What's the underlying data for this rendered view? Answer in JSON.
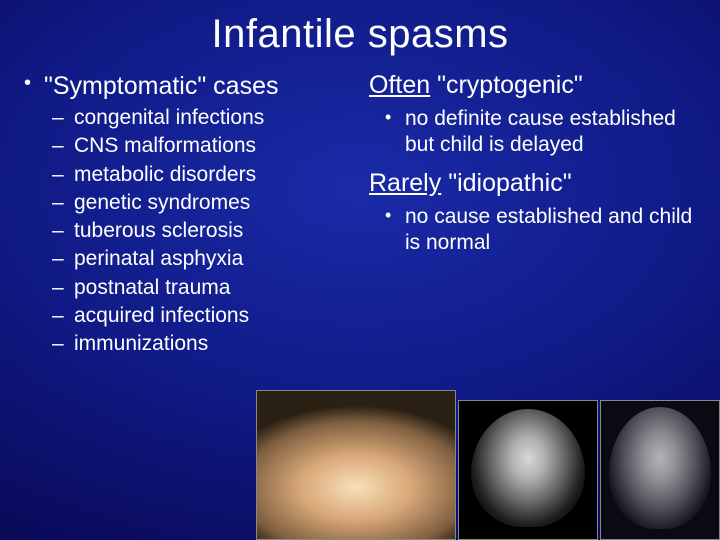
{
  "title": "Infantile spasms",
  "left": {
    "bullet": "\"Symptomatic\" cases",
    "sub": [
      "congenital infections",
      "CNS malformations",
      "metabolic disorders",
      "genetic syndromes",
      "tuberous sclerosis",
      "perinatal asphyxia",
      "postnatal trauma",
      "acquired infections",
      "immunizations"
    ]
  },
  "right": {
    "h1_under": "Often",
    "h1_rest": " \"cryptogenic\"",
    "b1": "no definite cause established but child is delayed",
    "h2_under": "Rarely",
    "h2_rest": " \"idiopathic\"",
    "b2": "no cause established and child is normal"
  },
  "marks": {
    "bullet": "•",
    "dash": "–"
  }
}
